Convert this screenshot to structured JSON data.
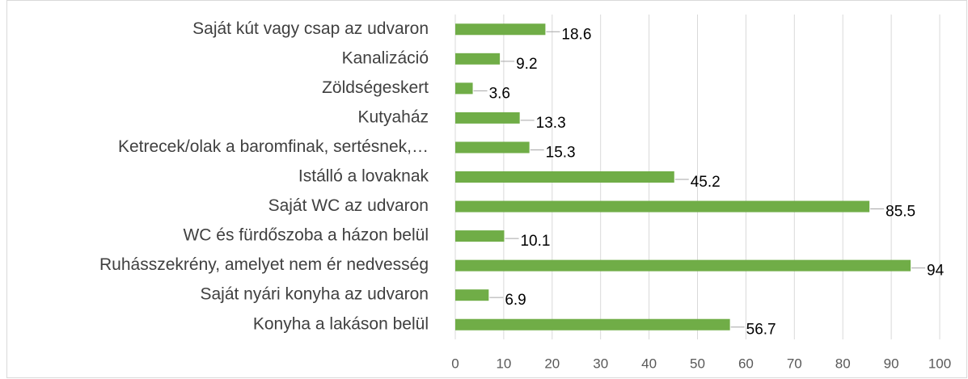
{
  "chart_data": {
    "type": "bar",
    "orientation": "horizontal",
    "categories": [
      "Saját kút vagy csap az udvaron",
      "Kanalizáció",
      "Zöldségeskert",
      "Kutyaház",
      "Ketrecek/olak a baromfinak, sertésnek,…",
      "Istálló a lovaknak",
      "Saját WC az udvaron",
      "WC és fürdőszoba a házon belül",
      "Ruhásszekrény, amelyet nem ér nedvesség",
      "Saját nyári konyha az udvaron",
      "Konyha a lakáson belül"
    ],
    "values": [
      18.6,
      9.2,
      3.6,
      13.3,
      15.3,
      45.2,
      85.5,
      10.1,
      94,
      6.9,
      56.7
    ],
    "color": "#70ad47",
    "xlim": [
      0,
      100
    ],
    "xticks": [
      0,
      10,
      20,
      30,
      40,
      50,
      60,
      70,
      80,
      90,
      100
    ],
    "grid": true
  }
}
